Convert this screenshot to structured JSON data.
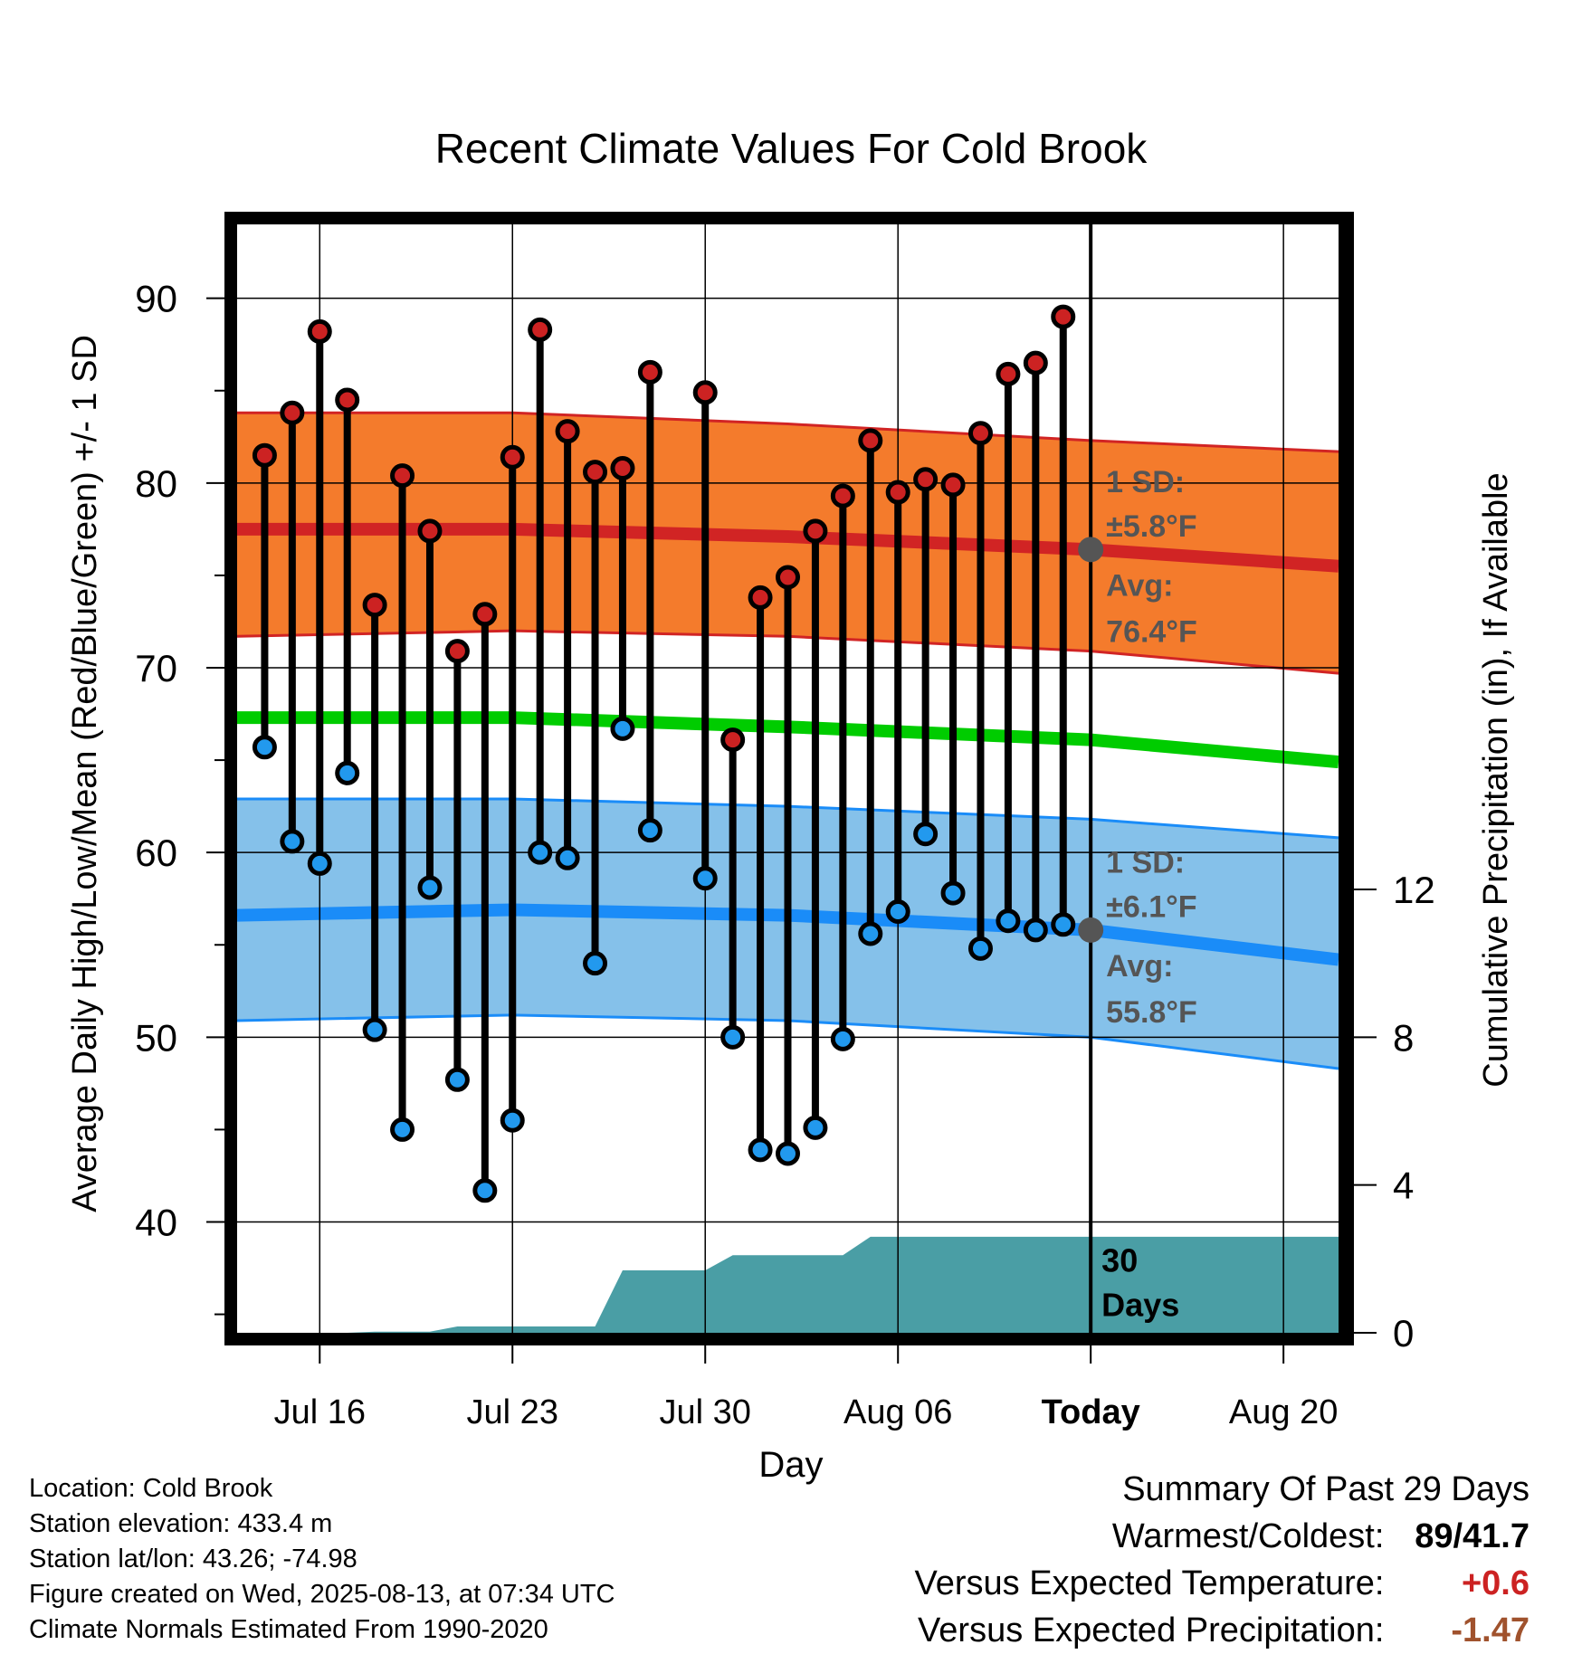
{
  "chart_data": {
    "type": "line",
    "title": "Recent Climate Values For Cold Brook",
    "xlabel": "Day",
    "ylabel": "Average Daily High/Low/Mean (Red/Blue/Green) +/- 1 SD",
    "y2label": "Cumulative Precipitation (in), If Available",
    "ylim": [
      34,
      94
    ],
    "yticks": [
      40,
      50,
      60,
      70,
      80,
      90
    ],
    "y2lim": [
      0,
      30
    ],
    "y2ticks": [
      0,
      4,
      8,
      12
    ],
    "x_range": [
      "Jul 13",
      "Aug 22"
    ],
    "x_ticks": [
      {
        "date": "Jul 16",
        "label": "Jul 16"
      },
      {
        "date": "Jul 23",
        "label": "Jul 23"
      },
      {
        "date": "Jul 30",
        "label": "Jul 30"
      },
      {
        "date": "Aug 06",
        "label": "Aug 06"
      },
      {
        "date": "Aug 13",
        "label": "Today"
      },
      {
        "date": "Aug 20",
        "label": "Aug 20"
      }
    ],
    "grid": true,
    "days": [
      "Jul 14",
      "Jul 15",
      "Jul 16",
      "Jul 17",
      "Jul 18",
      "Jul 19",
      "Jul 20",
      "Jul 21",
      "Jul 22",
      "Jul 23",
      "Jul 24",
      "Jul 25",
      "Jul 26",
      "Jul 27",
      "Jul 28",
      "Jul 29",
      "Jul 30",
      "Jul 31",
      "Aug 01",
      "Aug 02",
      "Aug 03",
      "Aug 04",
      "Aug 05",
      "Aug 06",
      "Aug 07",
      "Aug 08",
      "Aug 09",
      "Aug 10",
      "Aug 11",
      "Aug 12"
    ],
    "daily_high": [
      81.5,
      83.8,
      88.2,
      84.5,
      73.4,
      80.4,
      77.4,
      70.9,
      72.9,
      81.4,
      88.3,
      82.8,
      80.6,
      80.8,
      86.0,
      null,
      84.9,
      66.1,
      73.8,
      74.9,
      77.4,
      79.3,
      82.3,
      79.5,
      80.2,
      79.9,
      82.7,
      85.9,
      86.5,
      89.0
    ],
    "daily_low": [
      65.7,
      60.6,
      59.4,
      64.3,
      50.4,
      45.0,
      58.1,
      47.7,
      41.7,
      45.5,
      60.0,
      59.7,
      54.0,
      66.7,
      61.2,
      null,
      58.6,
      50.0,
      43.9,
      43.7,
      45.1,
      49.9,
      55.6,
      56.8,
      61.0,
      57.8,
      54.8,
      56.3,
      55.8,
      56.1
    ],
    "normal_dates": [
      "Jul 13",
      "Jul 23",
      "Aug 02",
      "Aug 13",
      "Aug 22"
    ],
    "normal_high": [
      77.5,
      77.5,
      77.1,
      76.4,
      75.5
    ],
    "normal_high_sd_upper": [
      83.8,
      83.8,
      83.2,
      82.3,
      81.7
    ],
    "normal_high_sd_lower": [
      71.7,
      72.0,
      71.7,
      70.9,
      69.7
    ],
    "normal_mean": [
      67.3,
      67.3,
      66.8,
      66.1,
      64.9
    ],
    "normal_low": [
      56.6,
      56.9,
      56.6,
      55.8,
      54.2
    ],
    "normal_low_sd_upper": [
      62.9,
      62.9,
      62.5,
      61.8,
      60.8
    ],
    "normal_low_sd_lower": [
      50.9,
      51.2,
      50.9,
      50.0,
      48.3
    ],
    "precip_dates": [
      "Jul 13",
      "Jul 17",
      "Jul 18",
      "Jul 20",
      "Jul 21",
      "Jul 26",
      "Jul 27",
      "Jul 30",
      "Jul 31",
      "Aug 04",
      "Aug 05",
      "Aug 22"
    ],
    "precip_cumulative": [
      0,
      0,
      0.03,
      0.03,
      0.17,
      0.17,
      1.69,
      1.69,
      2.1,
      2.1,
      2.6,
      2.6
    ],
    "annotations": {
      "high_sd_label": "1 SD:",
      "high_sd_value": "±5.8°F",
      "high_avg_label": "Avg:",
      "high_avg_value": "76.4°F",
      "low_sd_label": "1 SD:",
      "low_sd_value": "±6.1°F",
      "low_avg_label": "Avg:",
      "low_avg_value": "55.8°F",
      "days_label_1": "30",
      "days_label_2": "Days"
    },
    "colors": {
      "high_band": "#f47b2c",
      "high_line": "#d12424",
      "low_band": "#85c1ea",
      "low_line": "#1a8cf8",
      "mean_line": "#00cc00",
      "precip": "#4a9ea5",
      "high_marker": "#cc2222",
      "low_marker": "#2299ee",
      "annotation": "#555555"
    }
  },
  "info": {
    "location": "Location: Cold Brook",
    "elevation": "Station elevation: 433.4 m",
    "latlon": "Station lat/lon: 43.26; -74.98",
    "created": "Figure created on Wed, 2025-08-13, at 07:34 UTC",
    "normals": "Climate Normals Estimated From 1990-2020"
  },
  "summary": {
    "title": "Summary Of Past 29 Days",
    "warm_label": "Warmest/Coldest:",
    "warm_value": "89/41.7",
    "temp_label": "Versus Expected Temperature:",
    "temp_value": "+0.6",
    "temp_color": "#cc2222",
    "precip_label": "Versus Expected Precipitation:",
    "precip_value": "-1.47",
    "precip_color": "#a0522d"
  }
}
